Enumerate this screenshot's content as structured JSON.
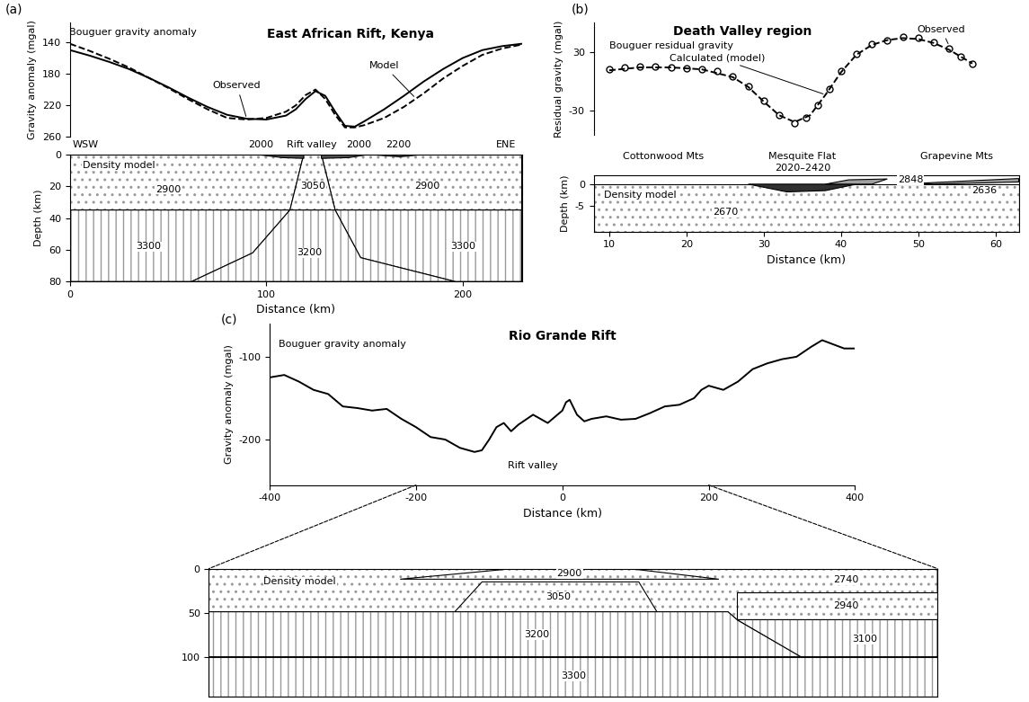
{
  "chart_data": [
    {
      "type": "line",
      "panel": "(a)",
      "title": "East African Rift, Kenya",
      "y_label": "Gravity anomaly (mgal)",
      "ylim": [
        260,
        115
      ],
      "yticks": [
        140,
        180,
        220,
        260
      ],
      "tick_labels": "y",
      "series": [
        {
          "name": "Observed",
          "color": "#000000",
          "line_style": "solid",
          "marker": "none",
          "label_at": [
            85,
            195
          ],
          "arrow_to": [
            90,
            237
          ],
          "x": [
            0,
            10,
            20,
            30,
            40,
            50,
            60,
            70,
            80,
            90,
            100,
            110,
            115,
            120,
            125,
            130,
            135,
            140,
            145,
            150,
            160,
            170,
            180,
            190,
            200,
            210,
            220,
            230
          ],
          "values": [
            150,
            157,
            165,
            174,
            185,
            197,
            210,
            222,
            232,
            237,
            238,
            233,
            225,
            212,
            202,
            208,
            228,
            246,
            247,
            240,
            225,
            208,
            190,
            174,
            160,
            150,
            145,
            142
          ]
        },
        {
          "name": "Model",
          "color": "#000000",
          "line_style": "dashed",
          "marker": "none",
          "label_at": [
            160,
            170
          ],
          "arrow_to": [
            176,
            211
          ],
          "x": [
            0,
            10,
            20,
            30,
            40,
            50,
            60,
            70,
            80,
            90,
            100,
            110,
            115,
            120,
            125,
            130,
            135,
            140,
            145,
            150,
            160,
            170,
            180,
            190,
            200,
            210,
            220,
            230
          ],
          "values": [
            142,
            151,
            161,
            172,
            185,
            198,
            212,
            225,
            236,
            238,
            236,
            228,
            220,
            207,
            200,
            212,
            232,
            248,
            248,
            245,
            236,
            222,
            205,
            186,
            170,
            156,
            148,
            143
          ]
        }
      ],
      "annotations": [
        {
          "text": "Bouguer gravity anomaly",
          "x": 32,
          "y": 127
        }
      ]
    },
    {
      "type": "cross_section",
      "x_label": "Distance (km)",
      "y_label": "Depth (km)",
      "xlim": [
        0,
        230
      ],
      "xticks": [
        0,
        100,
        200
      ],
      "ylim": [
        80,
        0
      ],
      "yticks": [
        0,
        20,
        40,
        60,
        80
      ],
      "bodies": [
        {
          "label": "2900",
          "color": "#ffffff",
          "polygon": [
            [
              0,
              0
            ],
            [
              119,
              0
            ],
            [
              112,
              35
            ],
            [
              0,
              35
            ]
          ],
          "label_at": [
            50,
            22
          ]
        },
        {
          "label": "2900",
          "color": "#ffffff",
          "polygon": [
            [
              128,
              0
            ],
            [
              230,
              0
            ],
            [
              230,
              35
            ],
            [
              135,
              35
            ]
          ],
          "label_at": [
            182,
            20
          ]
        },
        {
          "label": "3050",
          "color": "#ffffff",
          "polygon": [
            [
              119,
              0
            ],
            [
              128,
              0
            ],
            [
              135,
              35
            ],
            [
              112,
              35
            ]
          ],
          "label_at": [
            123.5,
            20
          ]
        },
        {
          "label": "3300",
          "color": "#ffffff",
          "polygon": [
            [
              0,
              35
            ],
            [
              112,
              35
            ],
            [
              93,
              62
            ],
            [
              62,
              80
            ],
            [
              0,
              80
            ]
          ],
          "label_at": [
            40,
            58
          ]
        },
        {
          "label": "3300",
          "color": "#ffffff",
          "polygon": [
            [
              135,
              35
            ],
            [
              230,
              35
            ],
            [
              230,
              80
            ],
            [
              196,
              80
            ],
            [
              148,
              65
            ]
          ],
          "label_at": [
            200,
            58
          ]
        },
        {
          "label": "3200",
          "color": "#ffffff",
          "polygon": [
            [
              112,
              35
            ],
            [
              135,
              35
            ],
            [
              148,
              65
            ],
            [
              196,
              80
            ],
            [
              62,
              80
            ],
            [
              93,
              62
            ]
          ],
          "label_at": [
            122,
            62
          ]
        },
        {
          "label": "2000",
          "color": "#505050",
          "polygon": [
            [
              95,
              0
            ],
            [
              119,
              0
            ],
            [
              119,
              2.5
            ],
            [
              108,
              2
            ]
          ],
          "label_at": [
            97,
            -6
          ]
        },
        {
          "label": "2000",
          "color": "#505050",
          "polygon": [
            [
              128,
              0
            ],
            [
              152,
              0
            ],
            [
              142,
              2
            ],
            [
              128,
              2.5
            ]
          ],
          "label_at": [
            147,
            -6
          ]
        },
        {
          "label": "2200",
          "color": "#505050",
          "polygon": [
            [
              152,
              0
            ],
            [
              180,
              0
            ],
            [
              168,
              1.5
            ]
          ],
          "label_at": [
            167,
            -6
          ]
        }
      ],
      "annotations": [
        {
          "text": "WSW",
          "x": 8,
          "y": -6
        },
        {
          "text": "Rift valley",
          "x": 123,
          "y": -6
        },
        {
          "text": "ENE",
          "x": 222,
          "y": -6
        },
        {
          "text": "Density model",
          "x": 25,
          "y": 7
        }
      ]
    },
    {
      "type": "line",
      "panel": "(b)",
      "title": "Death Valley region",
      "y_label": "Residual gravity (mgal)",
      "ylim": [
        -55,
        60
      ],
      "yticks": [
        -30,
        30
      ],
      "tick_labels": "y",
      "series": [
        {
          "name": "Observed",
          "color": "#000000",
          "line_style": "none",
          "marker": "circle",
          "label_at": [
            53,
            53
          ],
          "arrow_to": [
            54,
            36
          ],
          "x": [
            10,
            12,
            14,
            16,
            18,
            20,
            22,
            24,
            26,
            28,
            30,
            32,
            34,
            35.5,
            37,
            38.5,
            40,
            42,
            44,
            46,
            48,
            50,
            52,
            54,
            55.5,
            57
          ],
          "values": [
            12,
            14,
            15,
            15,
            14,
            13,
            12,
            10,
            5,
            -5,
            -20,
            -35,
            -43,
            -38,
            -25,
            -8,
            10,
            28,
            38,
            42,
            45,
            44,
            40,
            33,
            25,
            18
          ]
        },
        {
          "name": "Calculated (model)",
          "color": "#000000",
          "line_style": "dashed",
          "marker": "none",
          "label_at": [
            24,
            24
          ],
          "arrow_to": [
            38,
            -14
          ],
          "x": [
            10,
            14,
            18,
            22,
            26,
            28,
            30,
            32,
            34,
            36,
            38,
            40,
            42,
            44,
            46,
            48,
            50,
            52,
            54,
            57
          ],
          "values": [
            11,
            14,
            14,
            12,
            4,
            -6,
            -21,
            -35,
            -42,
            -35,
            -14,
            9,
            27,
            37,
            42,
            44,
            43,
            39,
            32,
            18
          ]
        }
      ],
      "annotations": [
        {
          "text": "Bouguer residual gravity",
          "x": 18,
          "y": 36
        }
      ]
    },
    {
      "type": "cross_section",
      "x_label": "Distance (km)",
      "y_label": "Depth (km)",
      "xlim": [
        8,
        63
      ],
      "xticks": [
        10,
        20,
        30,
        40,
        50,
        60
      ],
      "ylim": [
        -11,
        2
      ],
      "yticks": [
        -5,
        0
      ],
      "bodies": [
        {
          "label": "2670",
          "color": "#ffffff",
          "polygon": [
            [
              8,
              0
            ],
            [
              63,
              0
            ],
            [
              63,
              -11
            ],
            [
              8,
              -11
            ]
          ],
          "label_at": [
            25,
            -6.5
          ]
        },
        {
          "label": "2020–2420",
          "color": "#303030",
          "polygon": [
            [
              28,
              0
            ],
            [
              42,
              0
            ],
            [
              38,
              -1.5
            ],
            [
              33,
              -1.8
            ]
          ],
          "label_at": [
            35,
            3.8
          ]
        },
        {
          "label": "2848",
          "color": "#a0a0a0",
          "polygon": [
            [
              38,
              0
            ],
            [
              44,
              0
            ],
            [
              46,
              1.2
            ],
            [
              41,
              1.0
            ]
          ],
          "label_at": [
            49,
            1.0
          ]
        },
        {
          "label": "2636",
          "color": "#a0a0a0",
          "polygon": [
            [
              50,
              0.2
            ],
            [
              63,
              1.3
            ],
            [
              63,
              0.5
            ],
            [
              52,
              0
            ]
          ],
          "label_at": [
            58.5,
            -1.5
          ]
        }
      ],
      "annotations": [
        {
          "text": "Cottonwood Mts",
          "x": 17,
          "y": 6.5
        },
        {
          "text": "Mesquite Flat",
          "x": 35,
          "y": 6.5
        },
        {
          "text": "Grapevine Mts",
          "x": 55,
          "y": 6.5
        },
        {
          "text": "Density model",
          "x": 14,
          "y": -2.5
        }
      ]
    },
    {
      "type": "line",
      "panel": "(c)",
      "title": "Rio Grande Rift",
      "x_label": "Distance (km)",
      "y_label": "Gravity anomaly (mgal)",
      "xlim": [
        -400,
        400
      ],
      "xticks": [
        -400,
        -200,
        0,
        200,
        400
      ],
      "ylim": [
        -255,
        -60
      ],
      "yticks": [
        -200,
        -100
      ],
      "series": [
        {
          "color": "#000000",
          "line_style": "solid",
          "marker": "none",
          "x": [
            -400,
            -380,
            -360,
            -340,
            -320,
            -300,
            -280,
            -260,
            -240,
            -220,
            -200,
            -180,
            -160,
            -140,
            -120,
            -110,
            -100,
            -90,
            -80,
            -70,
            -60,
            -40,
            -20,
            0,
            5,
            10,
            20,
            30,
            40,
            60,
            80,
            100,
            120,
            140,
            160,
            180,
            190,
            200,
            220,
            240,
            260,
            280,
            300,
            320,
            340,
            355,
            370,
            385,
            400
          ],
          "values": [
            -125,
            -122,
            -130,
            -140,
            -145,
            -160,
            -162,
            -165,
            -163,
            -175,
            -185,
            -197,
            -200,
            -210,
            -215,
            -213,
            -200,
            -185,
            -180,
            -190,
            -182,
            -170,
            -180,
            -165,
            -155,
            -152,
            -170,
            -178,
            -175,
            -172,
            -176,
            -175,
            -168,
            -160,
            -158,
            -150,
            -140,
            -135,
            -140,
            -130,
            -115,
            -108,
            -103,
            -100,
            -88,
            -80,
            -85,
            -90,
            -90
          ]
        }
      ],
      "annotations": [
        {
          "text": "Bouguer gravity anomaly",
          "x": -300,
          "y": -85
        },
        {
          "text": "Rift valley",
          "x": -40,
          "y": -232
        }
      ]
    },
    {
      "type": "cross_section",
      "xlim": [
        -200,
        200
      ],
      "ylim": [
        145,
        0
      ],
      "yticks": [
        0,
        50,
        100
      ],
      "tick_labels": "y",
      "bodies": [
        {
          "label": "2740",
          "color": "#ffffff",
          "polygon": [
            [
              -200,
              0
            ],
            [
              200,
              0
            ],
            [
              200,
              58
            ],
            [
              90,
              58
            ],
            [
              85,
              49
            ],
            [
              -200,
              49
            ]
          ],
          "label_at": [
            150,
            13
          ]
        },
        {
          "label": "2940",
          "color": "#ffffff",
          "polygon": [
            [
              90,
              27
            ],
            [
              200,
              27
            ],
            [
              200,
              58
            ],
            [
              90,
              58
            ]
          ],
          "label_at": [
            150,
            42
          ]
        },
        {
          "label": "2900",
          "color": "#ffffff",
          "polygon": [
            [
              -95,
              12
            ],
            [
              -33,
              0
            ],
            [
              31,
              0
            ],
            [
              80,
              12
            ]
          ],
          "label_at": [
            -2,
            6
          ]
        },
        {
          "label": "3050",
          "color": "#ffffff",
          "polygon": [
            [
              -50,
              15
            ],
            [
              36,
              15
            ],
            [
              46,
              49
            ],
            [
              -65,
              49
            ]
          ],
          "label_at": [
            -8,
            32
          ]
        },
        {
          "label": "3200",
          "color": "#ffffff",
          "polygon": [
            [
              -200,
              49
            ],
            [
              85,
              49
            ],
            [
              90,
              58
            ],
            [
              125,
              100
            ],
            [
              -200,
              100
            ]
          ],
          "label_at": [
            -20,
            75
          ]
        },
        {
          "label": "3100",
          "color": "#ffffff",
          "polygon": [
            [
              90,
              58
            ],
            [
              200,
              58
            ],
            [
              200,
              100
            ],
            [
              125,
              100
            ]
          ],
          "label_at": [
            160,
            80
          ]
        },
        {
          "label": "3300",
          "color": "#ffffff",
          "polygon": [
            [
              -200,
              100
            ],
            [
              200,
              100
            ],
            [
              200,
              145
            ],
            [
              -200,
              145
            ]
          ],
          "label_at": [
            0,
            122
          ]
        }
      ],
      "annotations": [
        {
          "text": "Density model",
          "x": -150,
          "y": 15
        }
      ]
    }
  ]
}
